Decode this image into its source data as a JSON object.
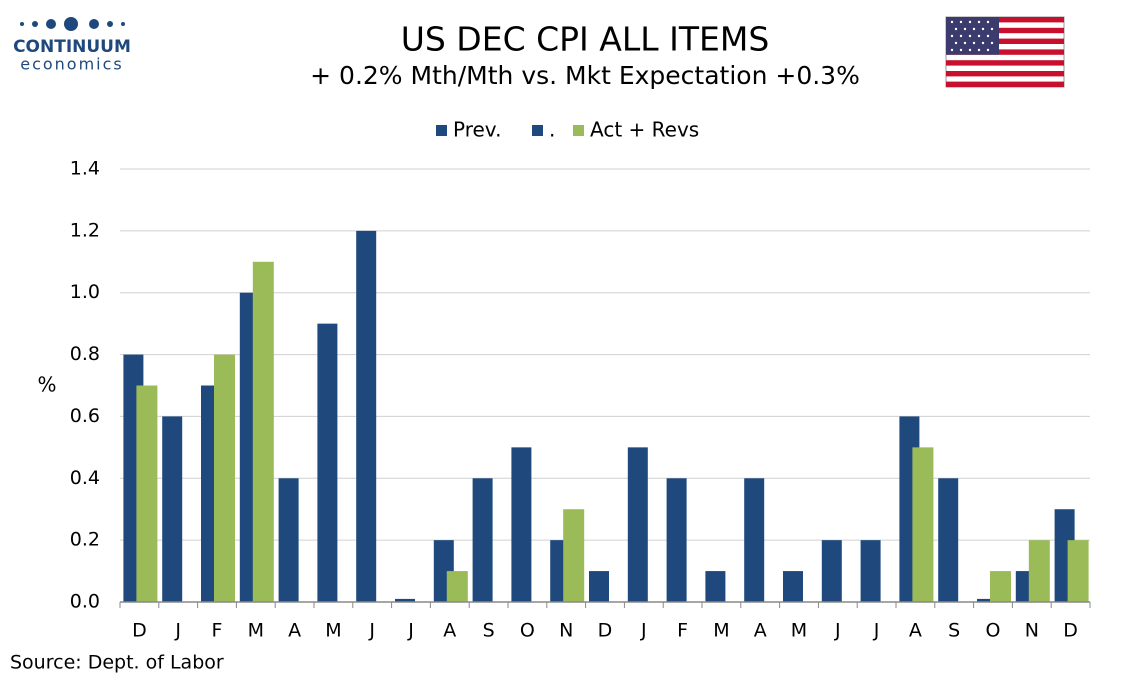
{
  "logo": {
    "name": "CONTINUUM",
    "tagline": "economics"
  },
  "chart_data": {
    "type": "bar",
    "title": "US DEC CPI ALL ITEMS",
    "subtitle": "+ 0.2% Mth/Mth  vs. Mkt Expectation +0.3%",
    "y_label": "%",
    "source": "Source: Dept. of Labor",
    "categories": [
      "D",
      "J",
      "F",
      "M",
      "A",
      "M",
      "J",
      "J",
      "A",
      "S",
      "O",
      "N",
      "D",
      "J",
      "F",
      "M",
      "A",
      "M",
      "J",
      "J",
      "A",
      "S",
      "O",
      "N",
      "D"
    ],
    "series": [
      {
        "name": "Prev.",
        "color": "#1f497d",
        "values": [
          0.8,
          0.6,
          0.7,
          1.0,
          0.4,
          0.9,
          1.2,
          0.01,
          0.2,
          0.4,
          0.5,
          0.2,
          0.1,
          0.5,
          0.4,
          0.1,
          0.4,
          0.1,
          0.2,
          0.2,
          0.6,
          0.4,
          0.01,
          0.1,
          0.3
        ]
      },
      {
        "name": ".",
        "color": "#1f497d",
        "values": [
          null,
          null,
          null,
          null,
          null,
          null,
          null,
          null,
          null,
          null,
          null,
          null,
          null,
          null,
          null,
          null,
          null,
          null,
          null,
          null,
          null,
          null,
          null,
          null,
          null
        ]
      },
      {
        "name": "Act + Revs",
        "color": "#9bbb59",
        "values": [
          0.7,
          null,
          0.8,
          1.1,
          null,
          null,
          null,
          null,
          0.1,
          null,
          null,
          0.3,
          null,
          null,
          null,
          null,
          null,
          null,
          null,
          null,
          0.5,
          null,
          0.1,
          0.2,
          0.2
        ]
      }
    ],
    "ylim": [
      0,
      1.4
    ],
    "yticks": [
      {
        "value": 0,
        "label": "0.0"
      },
      0.2,
      0.4,
      0.6,
      0.8,
      {
        "value": 1,
        "label": "1.0"
      },
      1.2,
      1.4
    ],
    "grid": true,
    "legend": "top"
  }
}
